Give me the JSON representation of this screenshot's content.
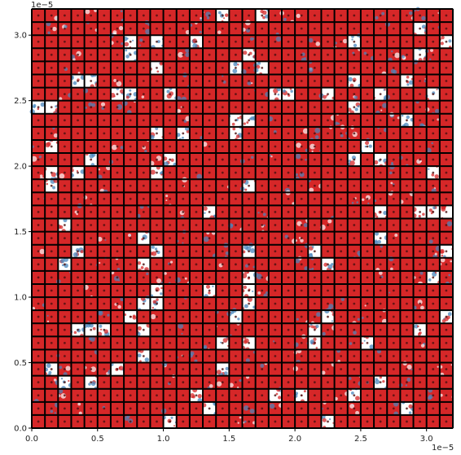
{
  "chart_data": {
    "type": "heatmap",
    "title": "",
    "xlabel": "",
    "ylabel": "",
    "x_offset_text": "1e−5",
    "y_offset_text": "1e−5",
    "xlim": [
      0.0,
      3.2
    ],
    "ylim": [
      0.0,
      3.2
    ],
    "xticks": [
      "0.0",
      "0.5",
      "1.0",
      "1.5",
      "2.0",
      "2.5",
      "3.0"
    ],
    "yticks": [
      "0.0",
      "0.5",
      "1.0",
      "1.5",
      "2.0",
      "2.5",
      "3.0"
    ],
    "grid_cells": [
      32,
      32
    ],
    "grid_color": "#000000",
    "colors": {
      "red": "#d62728",
      "blue": "#4a87bd",
      "background": "#ffffff"
    }
  }
}
